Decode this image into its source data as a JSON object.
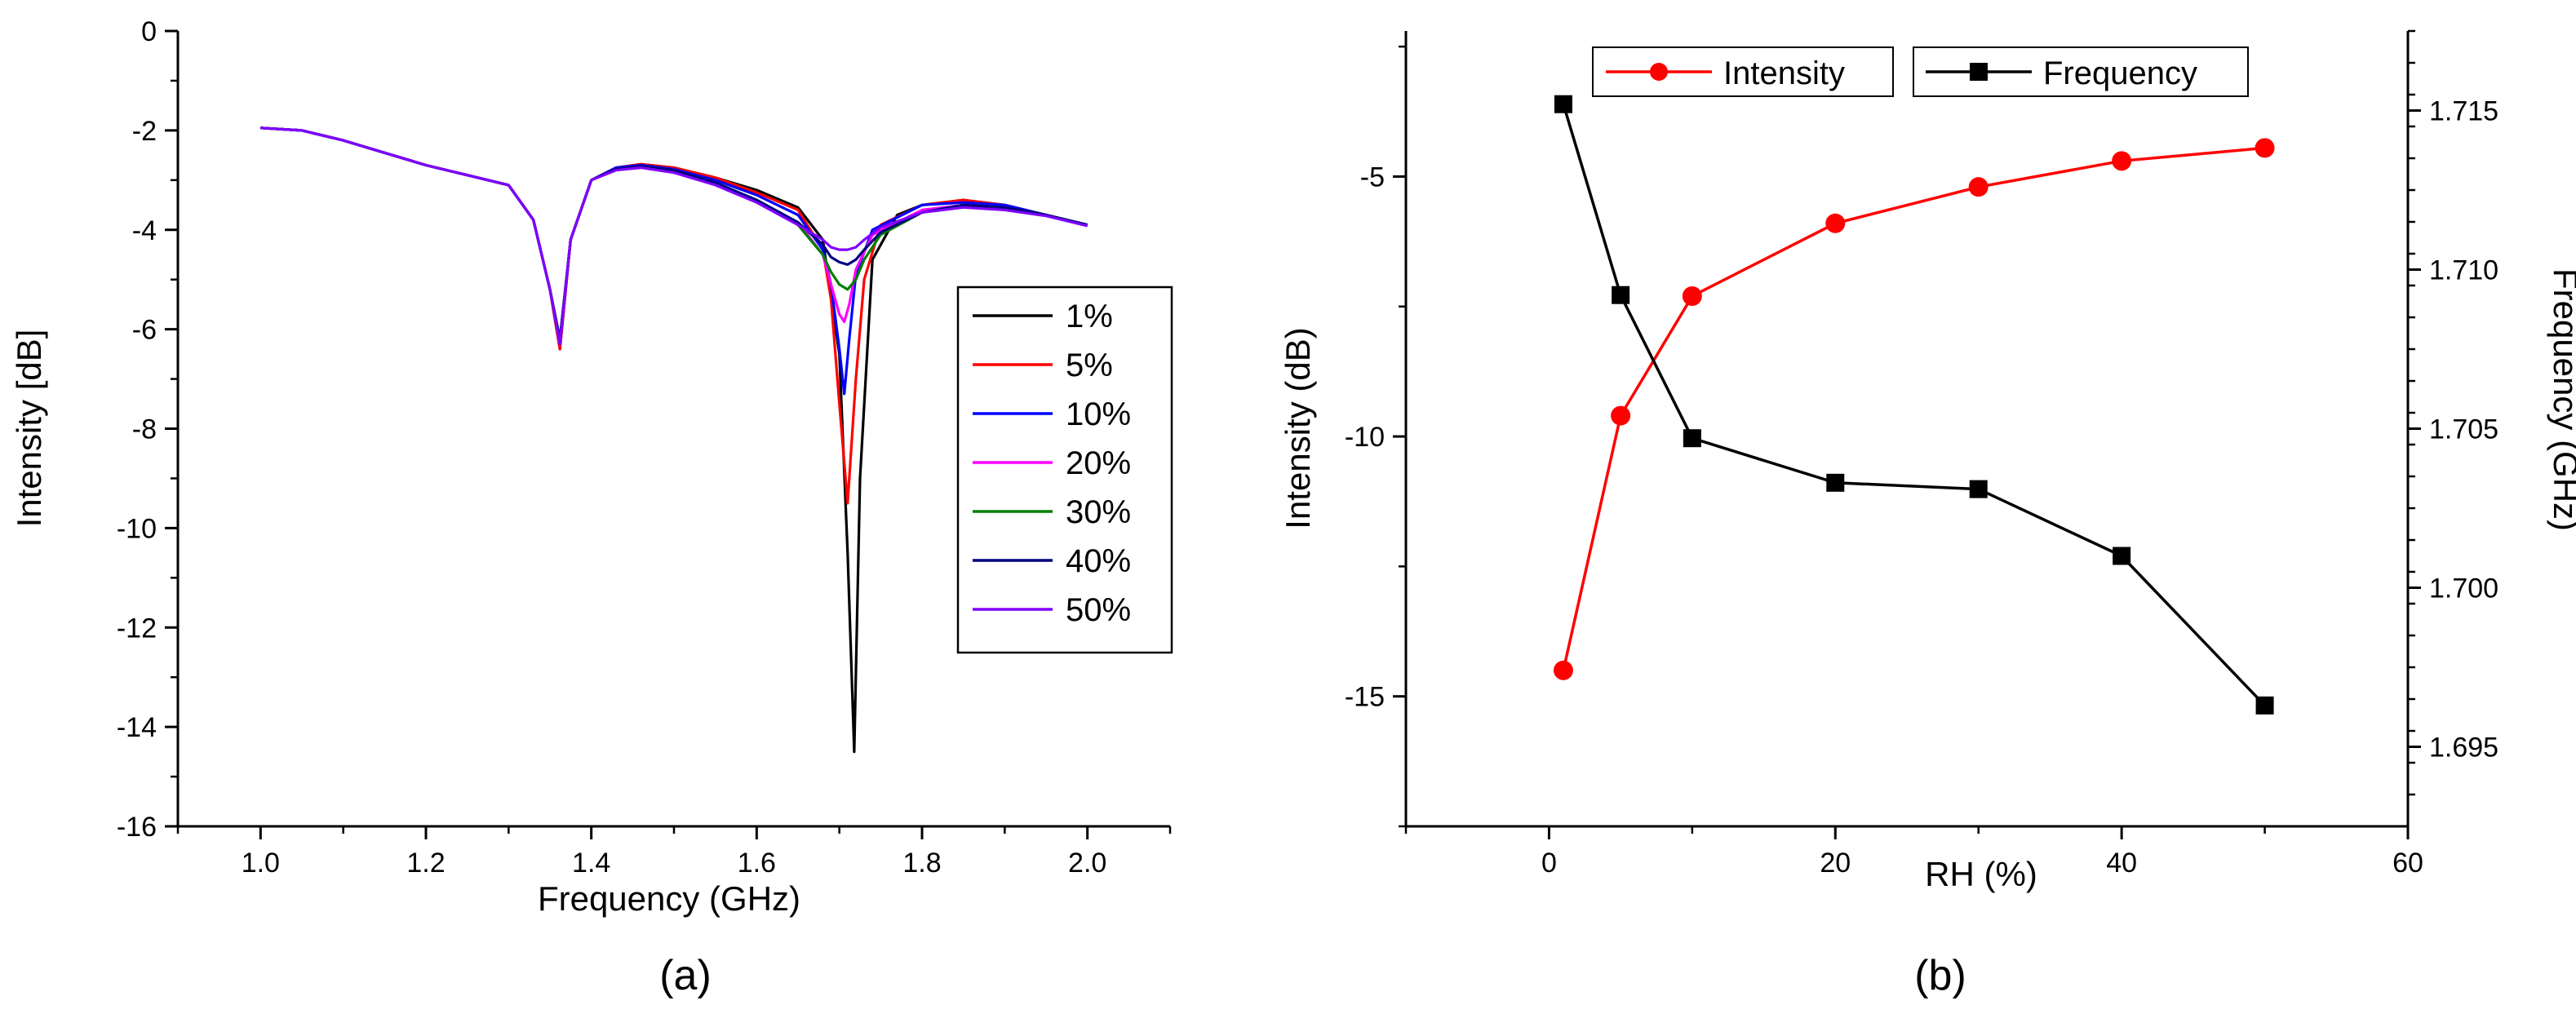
{
  "chart_data": [
    {
      "id": "a",
      "type": "line",
      "panel_label": "(a)",
      "title": "",
      "xlabel": "Frequency (GHz)",
      "ylabel": "Intensity [dB]",
      "xlim": [
        0.9,
        2.1
      ],
      "ylim": [
        -16,
        0
      ],
      "xticks": [
        1.0,
        1.2,
        1.4,
        1.6,
        1.8,
        2.0
      ],
      "xtick_labels": [
        "1.0",
        "1.2",
        "1.4",
        "1.6",
        "1.8",
        "2.0"
      ],
      "yticks": [
        0,
        -2,
        -4,
        -6,
        -8,
        -10,
        -12,
        -14,
        -16
      ],
      "ytick_labels": [
        "0",
        "-2",
        "-4",
        "-6",
        "-8",
        "-10",
        "-12",
        "-14",
        "-16"
      ],
      "legend_position": "center-right",
      "series": [
        {
          "name": "1%",
          "color": "#000000",
          "x": [
            1.0,
            1.05,
            1.1,
            1.15,
            1.2,
            1.25,
            1.3,
            1.33,
            1.35,
            1.362,
            1.375,
            1.4,
            1.43,
            1.46,
            1.5,
            1.55,
            1.6,
            1.65,
            1.68,
            1.7,
            1.71,
            1.718,
            1.725,
            1.74,
            1.77,
            1.8,
            1.85,
            1.9,
            1.95,
            2.0
          ],
          "values": [
            -1.95,
            -2.0,
            -2.2,
            -2.45,
            -2.7,
            -2.9,
            -3.1,
            -3.8,
            -5.2,
            -6.4,
            -4.2,
            -3.0,
            -2.75,
            -2.68,
            -2.75,
            -2.95,
            -3.2,
            -3.55,
            -4.2,
            -6.5,
            -10.5,
            -14.5,
            -9.0,
            -4.6,
            -3.7,
            -3.5,
            -3.4,
            -3.5,
            -3.7,
            -3.9
          ]
        },
        {
          "name": "5%",
          "color": "#ff0000",
          "x": [
            1.0,
            1.05,
            1.1,
            1.15,
            1.2,
            1.25,
            1.3,
            1.33,
            1.35,
            1.362,
            1.375,
            1.4,
            1.43,
            1.46,
            1.5,
            1.55,
            1.6,
            1.65,
            1.68,
            1.69,
            1.7,
            1.71,
            1.72,
            1.73,
            1.75,
            1.8,
            1.85,
            1.9,
            1.95,
            2.0
          ],
          "values": [
            -1.95,
            -2.0,
            -2.2,
            -2.45,
            -2.7,
            -2.9,
            -3.1,
            -3.8,
            -5.2,
            -6.4,
            -4.2,
            -3.0,
            -2.75,
            -2.68,
            -2.75,
            -2.95,
            -3.25,
            -3.6,
            -4.4,
            -5.4,
            -7.5,
            -9.5,
            -7.0,
            -5.0,
            -3.9,
            -3.5,
            -3.4,
            -3.5,
            -3.7,
            -3.9
          ]
        },
        {
          "name": "10%",
          "color": "#0000ff",
          "x": [
            1.0,
            1.05,
            1.1,
            1.15,
            1.2,
            1.25,
            1.3,
            1.33,
            1.35,
            1.362,
            1.375,
            1.4,
            1.43,
            1.46,
            1.5,
            1.55,
            1.6,
            1.65,
            1.68,
            1.69,
            1.7,
            1.706,
            1.712,
            1.72,
            1.74,
            1.8,
            1.85,
            1.9,
            1.95,
            2.0
          ],
          "values": [
            -1.95,
            -2.0,
            -2.2,
            -2.45,
            -2.7,
            -2.9,
            -3.1,
            -3.8,
            -5.2,
            -6.3,
            -4.2,
            -3.0,
            -2.75,
            -2.7,
            -2.78,
            -3.0,
            -3.3,
            -3.7,
            -4.4,
            -5.1,
            -6.4,
            -7.3,
            -6.2,
            -4.9,
            -4.0,
            -3.5,
            -3.45,
            -3.5,
            -3.7,
            -3.9
          ]
        },
        {
          "name": "20%",
          "color": "#ff00ff",
          "x": [
            1.0,
            1.05,
            1.1,
            1.15,
            1.2,
            1.25,
            1.3,
            1.33,
            1.35,
            1.362,
            1.375,
            1.4,
            1.43,
            1.46,
            1.5,
            1.55,
            1.6,
            1.65,
            1.68,
            1.69,
            1.7,
            1.706,
            1.712,
            1.72,
            1.74,
            1.8,
            1.85,
            1.9,
            1.95,
            2.0
          ],
          "values": [
            -1.95,
            -2.0,
            -2.2,
            -2.45,
            -2.7,
            -2.9,
            -3.1,
            -3.8,
            -5.2,
            -6.3,
            -4.2,
            -3.0,
            -2.78,
            -2.72,
            -2.8,
            -3.05,
            -3.4,
            -3.85,
            -4.5,
            -5.1,
            -5.7,
            -5.85,
            -5.5,
            -4.8,
            -4.1,
            -3.6,
            -3.5,
            -3.55,
            -3.7,
            -3.9
          ]
        },
        {
          "name": "30%",
          "color": "#008000",
          "x": [
            1.0,
            1.05,
            1.1,
            1.15,
            1.2,
            1.25,
            1.3,
            1.33,
            1.35,
            1.362,
            1.375,
            1.4,
            1.43,
            1.46,
            1.5,
            1.55,
            1.6,
            1.65,
            1.68,
            1.69,
            1.7,
            1.71,
            1.72,
            1.73,
            1.75,
            1.8,
            1.85,
            1.9,
            1.95,
            2.0
          ],
          "values": [
            -1.95,
            -2.0,
            -2.2,
            -2.45,
            -2.7,
            -2.9,
            -3.1,
            -3.8,
            -5.2,
            -6.2,
            -4.2,
            -3.0,
            -2.78,
            -2.72,
            -2.8,
            -3.05,
            -3.4,
            -3.9,
            -4.5,
            -4.85,
            -5.1,
            -5.2,
            -5.0,
            -4.6,
            -4.1,
            -3.65,
            -3.5,
            -3.55,
            -3.7,
            -3.9
          ]
        },
        {
          "name": "40%",
          "color": "#000080",
          "x": [
            1.0,
            1.05,
            1.1,
            1.15,
            1.2,
            1.25,
            1.3,
            1.33,
            1.35,
            1.362,
            1.375,
            1.4,
            1.43,
            1.46,
            1.5,
            1.55,
            1.6,
            1.65,
            1.68,
            1.69,
            1.7,
            1.71,
            1.72,
            1.73,
            1.75,
            1.8,
            1.85,
            1.9,
            1.95,
            2.0
          ],
          "values": [
            -1.95,
            -2.0,
            -2.2,
            -2.45,
            -2.7,
            -2.9,
            -3.1,
            -3.8,
            -5.2,
            -6.2,
            -4.2,
            -3.0,
            -2.78,
            -2.72,
            -2.8,
            -3.05,
            -3.4,
            -3.85,
            -4.3,
            -4.55,
            -4.65,
            -4.7,
            -4.6,
            -4.4,
            -4.05,
            -3.65,
            -3.5,
            -3.55,
            -3.7,
            -3.9
          ]
        },
        {
          "name": "50%",
          "color": "#8000ff",
          "x": [
            1.0,
            1.05,
            1.1,
            1.15,
            1.2,
            1.25,
            1.3,
            1.33,
            1.35,
            1.362,
            1.375,
            1.4,
            1.43,
            1.46,
            1.5,
            1.55,
            1.6,
            1.65,
            1.68,
            1.69,
            1.7,
            1.71,
            1.72,
            1.73,
            1.75,
            1.8,
            1.85,
            1.9,
            1.95,
            2.0
          ],
          "values": [
            -1.95,
            -2.0,
            -2.2,
            -2.45,
            -2.7,
            -2.9,
            -3.1,
            -3.8,
            -5.2,
            -6.3,
            -4.2,
            -3.0,
            -2.8,
            -2.75,
            -2.85,
            -3.1,
            -3.45,
            -3.9,
            -4.2,
            -4.35,
            -4.4,
            -4.4,
            -4.35,
            -4.2,
            -3.95,
            -3.65,
            -3.55,
            -3.6,
            -3.72,
            -3.92
          ]
        }
      ]
    },
    {
      "id": "b",
      "type": "line",
      "panel_label": "(b)",
      "title": "",
      "xlabel": "RH (%)",
      "ylabel": "Intensity (dB)",
      "y2label": "Frequency (GHz)",
      "xlim": [
        -10,
        60
      ],
      "ylim": [
        -17.5,
        -2.2
      ],
      "y2lim": [
        1.6925,
        1.7175
      ],
      "xticks": [
        0,
        20,
        40,
        60
      ],
      "xtick_labels": [
        "0",
        "20",
        "40",
        "60"
      ],
      "yticks": [
        -5,
        -10,
        -15
      ],
      "ytick_labels": [
        "-5",
        "-10",
        "-15"
      ],
      "y2ticks": [
        1.715,
        1.71,
        1.705,
        1.7,
        1.695
      ],
      "y2tick_labels": [
        "1.715",
        "1.710",
        "1.705",
        "1.700",
        "1.695"
      ],
      "legend_position": "top",
      "categories": [
        1,
        5,
        10,
        20,
        30,
        40,
        50
      ],
      "series": [
        {
          "name": "Intensity",
          "color": "#ff0000",
          "marker": "circle",
          "axis": "left",
          "x": [
            1,
            5,
            10,
            20,
            30,
            40,
            50
          ],
          "values": [
            -14.5,
            -9.6,
            -7.3,
            -5.9,
            -5.2,
            -4.7,
            -4.45
          ]
        },
        {
          "name": "Frequency",
          "color": "#000000",
          "marker": "square",
          "axis": "right",
          "x": [
            1,
            5,
            10,
            20,
            30,
            40,
            50
          ],
          "values": [
            1.7152,
            1.7092,
            1.7047,
            1.7033,
            1.7031,
            1.701,
            1.6963
          ]
        }
      ]
    }
  ]
}
